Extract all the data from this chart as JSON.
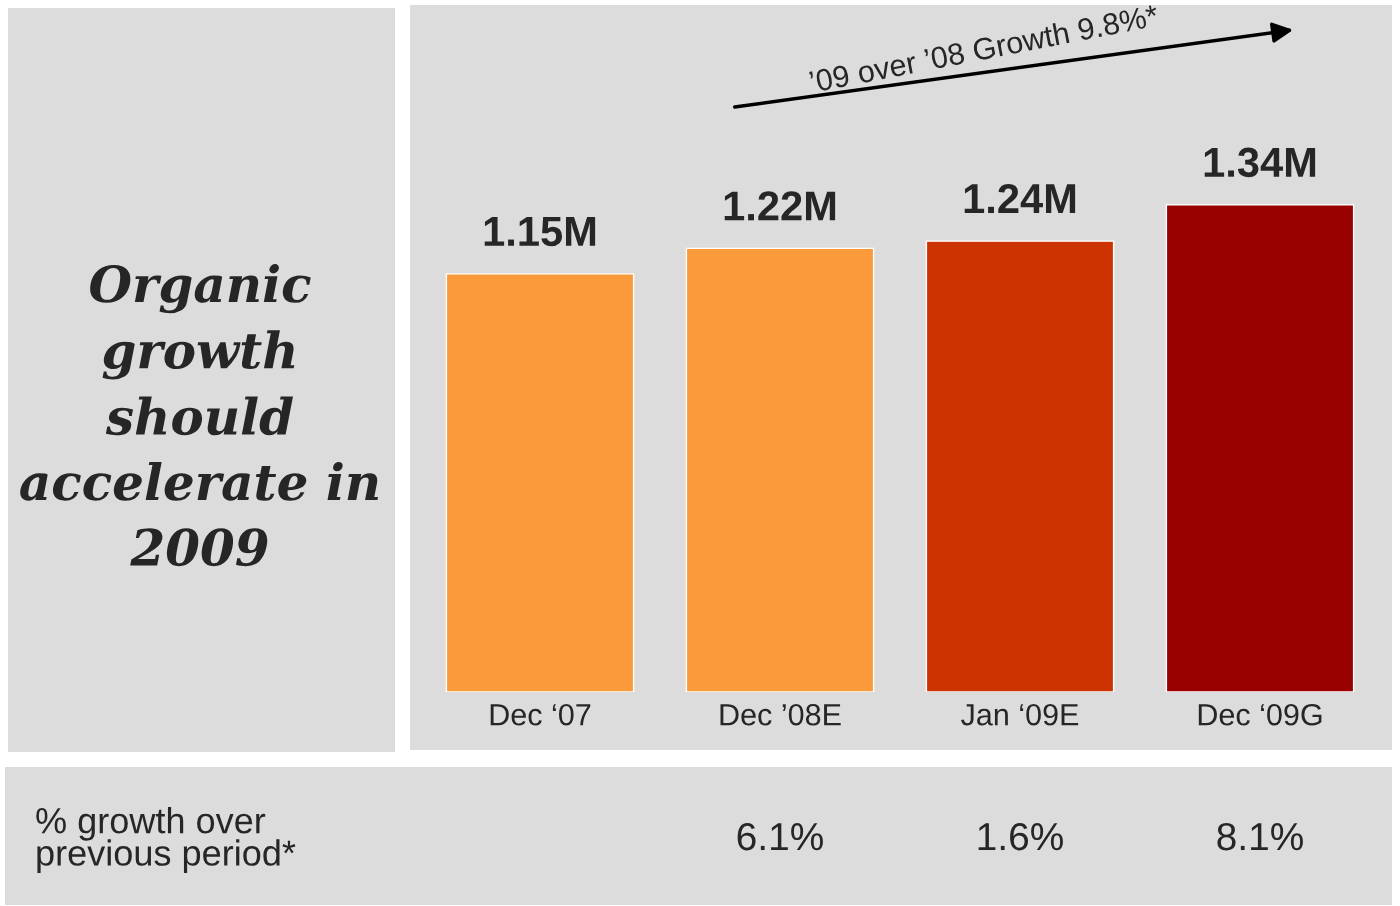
{
  "chart_data": {
    "type": "bar",
    "title": "Organic growth should accelerate in 2009",
    "categories": [
      "Dec ‘07",
      "Dec ’08E",
      "Jan ‘09E",
      "Dec ‘09G"
    ],
    "values": [
      1.15,
      1.22,
      1.24,
      1.34
    ],
    "value_labels": [
      "1.15M",
      "1.22M",
      "1.24M",
      "1.34M"
    ],
    "colors": [
      "#fb9a3a",
      "#fb9a3a",
      "#cc3300",
      "#990000"
    ],
    "annotations": [
      "’09 over ’08 Growth 9.8%*",
      "% growth over\nprevious period*",
      "6.1%",
      "1.6%",
      "8.1%"
    ],
    "grid": false,
    "legend": false
  }
}
